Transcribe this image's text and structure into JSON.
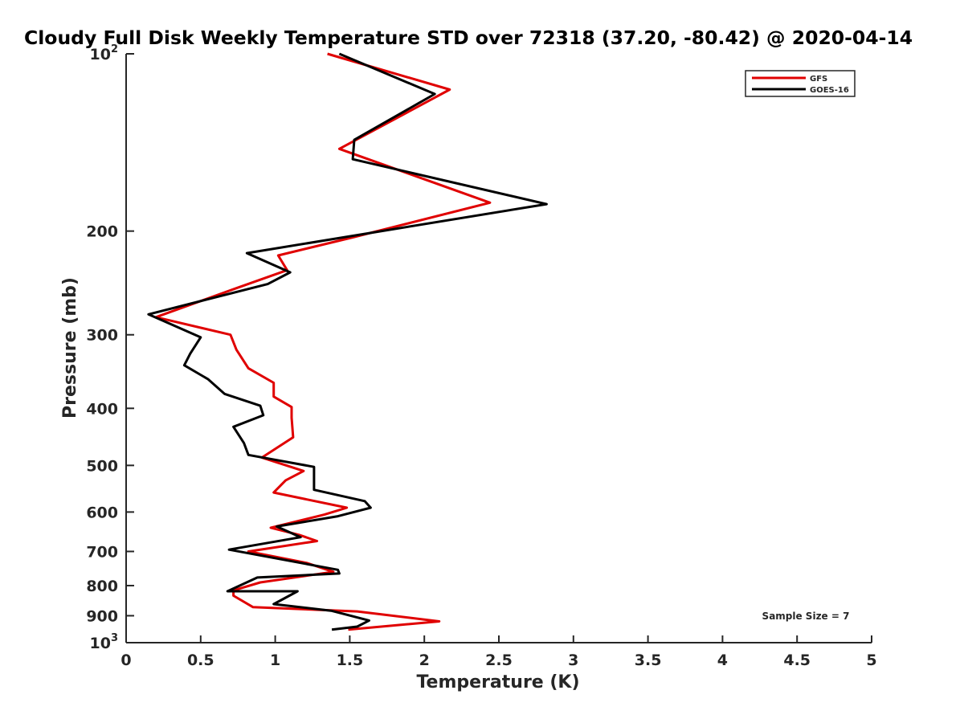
{
  "chart_data": {
    "type": "line",
    "title": "Cloudy Full Disk Weekly Temperature STD over 72318 (37.20, -80.42) @ 2020-04-14",
    "xlabel": "Temperature (K)",
    "ylabel": "Pressure (mb)",
    "xlim": [
      0,
      5
    ],
    "ylim": [
      100,
      1000
    ],
    "yscale": "log",
    "y_reversed": true,
    "x_ticks": [
      0,
      0.5,
      1,
      1.5,
      2,
      2.5,
      3,
      3.5,
      4,
      4.5,
      5
    ],
    "x_tick_labels": [
      "0",
      "0.5",
      "1",
      "1.5",
      "2",
      "2.5",
      "3",
      "3.5",
      "4",
      "4.5",
      "5"
    ],
    "y_ticks": [
      100,
      200,
      300,
      400,
      500,
      600,
      700,
      800,
      900,
      1000
    ],
    "y_tick_labels": [
      {
        "base": "10",
        "exp": "2"
      },
      {
        "base": "200",
        "exp": ""
      },
      {
        "base": "300",
        "exp": ""
      },
      {
        "base": "400",
        "exp": ""
      },
      {
        "base": "500",
        "exp": ""
      },
      {
        "base": "600",
        "exp": ""
      },
      {
        "base": "700",
        "exp": ""
      },
      {
        "base": "800",
        "exp": ""
      },
      {
        "base": "900",
        "exp": ""
      },
      {
        "base": "10",
        "exp": "3"
      }
    ],
    "legend_position": "top-right",
    "annotation": "Sample Size = 7",
    "series": [
      {
        "name": "GFS",
        "color": "#e00000",
        "points": [
          [
            1.35,
            100
          ],
          [
            2.17,
            115
          ],
          [
            1.43,
            145
          ],
          [
            2.44,
            179
          ],
          [
            1.52,
            205
          ],
          [
            1.02,
            220
          ],
          [
            1.08,
            233
          ],
          [
            0.74,
            250
          ],
          [
            0.2,
            280
          ],
          [
            0.7,
            300
          ],
          [
            0.74,
            318
          ],
          [
            0.82,
            342
          ],
          [
            0.99,
            362
          ],
          [
            0.99,
            382
          ],
          [
            1.11,
            398
          ],
          [
            1.11,
            415
          ],
          [
            1.12,
            448
          ],
          [
            0.91,
            485
          ],
          [
            1.19,
            511
          ],
          [
            1.07,
            530
          ],
          [
            0.99,
            556
          ],
          [
            1.48,
            590
          ],
          [
            1.33,
            606
          ],
          [
            0.97,
            638
          ],
          [
            1.16,
            656
          ],
          [
            1.28,
            672
          ],
          [
            0.82,
            700
          ],
          [
            1.21,
            732
          ],
          [
            1.39,
            758
          ],
          [
            0.9,
            790
          ],
          [
            0.72,
            815
          ],
          [
            0.72,
            832
          ],
          [
            0.85,
            870
          ],
          [
            1.55,
            885
          ],
          [
            2.1,
            920
          ],
          [
            1.49,
            950
          ]
        ]
      },
      {
        "name": "GOES-16",
        "color": "#000000",
        "points": [
          [
            1.43,
            100
          ],
          [
            2.07,
            117
          ],
          [
            1.53,
            140
          ],
          [
            1.52,
            151
          ],
          [
            2.82,
            180
          ],
          [
            0.81,
            218
          ],
          [
            1.1,
            235
          ],
          [
            0.95,
            246
          ],
          [
            0.15,
            277
          ],
          [
            0.5,
            303
          ],
          [
            0.43,
            323
          ],
          [
            0.39,
            338
          ],
          [
            0.55,
            357
          ],
          [
            0.66,
            378
          ],
          [
            0.9,
            396
          ],
          [
            0.92,
            411
          ],
          [
            0.72,
            430
          ],
          [
            0.79,
            458
          ],
          [
            0.82,
            480
          ],
          [
            1.26,
            503
          ],
          [
            1.26,
            550
          ],
          [
            1.6,
            575
          ],
          [
            1.64,
            590
          ],
          [
            1.42,
            610
          ],
          [
            1.01,
            635
          ],
          [
            1.17,
            662
          ],
          [
            0.69,
            695
          ],
          [
            1.42,
            752
          ],
          [
            1.43,
            763
          ],
          [
            0.88,
            775
          ],
          [
            0.68,
            818
          ],
          [
            1.15,
            818
          ],
          [
            0.99,
            860
          ],
          [
            1.38,
            883
          ],
          [
            1.63,
            917
          ],
          [
            1.55,
            939
          ],
          [
            1.38,
            950
          ]
        ]
      }
    ]
  }
}
